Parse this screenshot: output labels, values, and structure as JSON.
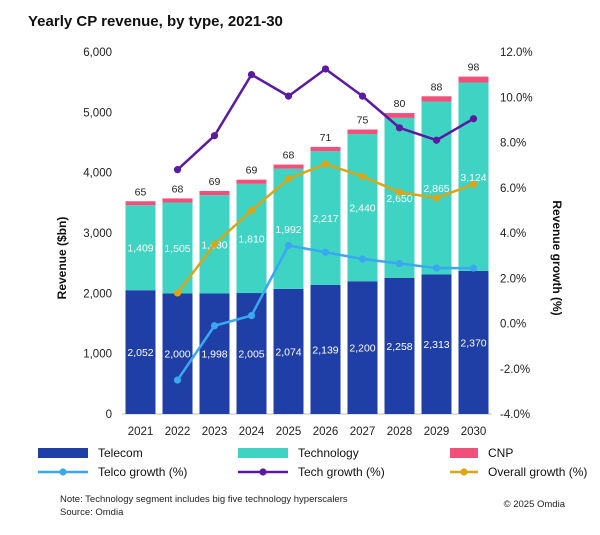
{
  "chart_data": {
    "type": "bar",
    "stacked": true,
    "title": "Yearly CP revenue, by type, 2021-30",
    "categories": [
      "2021",
      "2022",
      "2023",
      "2024",
      "2025",
      "2026",
      "2027",
      "2028",
      "2029",
      "2030"
    ],
    "ylabel": "Revenue ($bn)",
    "y2label": "Revenue growth (%)",
    "ylim": [
      0,
      6000
    ],
    "yticks": [
      "0",
      "1,000",
      "2,000",
      "3,000",
      "4,000",
      "5,000",
      "6,000"
    ],
    "ytick_values": [
      0,
      1000,
      2000,
      3000,
      4000,
      5000,
      6000
    ],
    "y2lim": [
      -4,
      12
    ],
    "y2ticks": [
      "-4.0%",
      "-2.0%",
      "0.0%",
      "2.0%",
      "4.0%",
      "6.0%",
      "8.0%",
      "10.0%",
      "12.0%"
    ],
    "y2tick_values": [
      -4,
      -2,
      0,
      2,
      4,
      6,
      8,
      10,
      12
    ],
    "series": [
      {
        "name": "Telecom",
        "color": "#1f3fa6",
        "values": [
          2052,
          2000,
          1998,
          2005,
          2074,
          2139,
          2200,
          2258,
          2313,
          2370
        ],
        "labels": [
          "2,052",
          "2,000",
          "1,998",
          "2,005",
          "2,074",
          "2,139",
          "2,200",
          "2,258",
          "2,313",
          "2,370"
        ]
      },
      {
        "name": "Technology",
        "color": "#3ed3c3",
        "values": [
          1409,
          1505,
          1630,
          1810,
          1992,
          2217,
          2440,
          2650,
          2865,
          3124
        ],
        "labels": [
          "1,409",
          "1,505",
          "1,630",
          "1,810",
          "1,992",
          "2,217",
          "2,440",
          "2,650",
          "2,865",
          "3,124"
        ]
      },
      {
        "name": "CNP",
        "color": "#f0507a",
        "values": [
          65,
          68,
          69,
          69,
          68,
          71,
          75,
          80,
          88,
          98
        ],
        "labels": [
          "65",
          "68",
          "69",
          "69",
          "68",
          "71",
          "75",
          "80",
          "88",
          "98"
        ]
      }
    ],
    "line_series": [
      {
        "name": "Telco growth (%)",
        "color": "#3aa8f0",
        "values": [
          null,
          -2.5,
          -0.1,
          0.35,
          3.45,
          3.15,
          2.85,
          2.65,
          2.45,
          2.45
        ]
      },
      {
        "name": "Tech growth (%)",
        "color": "#5b1aa0",
        "values": [
          null,
          6.8,
          8.3,
          11.0,
          10.05,
          11.25,
          10.05,
          8.65,
          8.1,
          9.05
        ]
      },
      {
        "name": "Overall growth (%)",
        "color": "#d8a618",
        "values": [
          null,
          1.35,
          3.5,
          5.0,
          6.4,
          7.05,
          6.5,
          5.8,
          5.55,
          6.15
        ]
      }
    ],
    "note": "Note: Technology segment includes big five technology hyperscalers",
    "source": "Source: Omdia",
    "copyright": "© 2025 Omdia"
  }
}
